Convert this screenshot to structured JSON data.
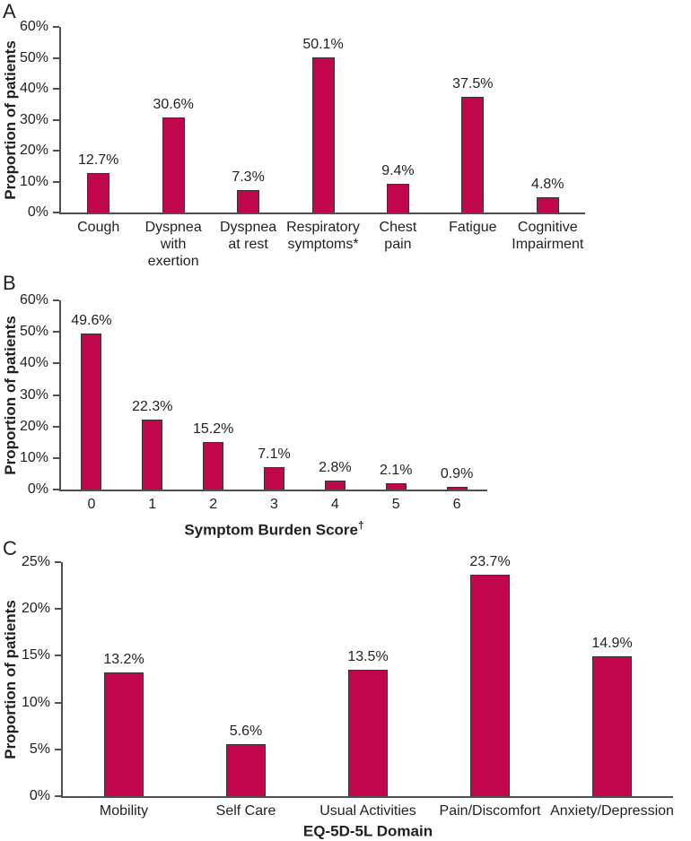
{
  "colors": {
    "bar_fill": "#C1074B",
    "bar_border": "#3a3336",
    "axis": "#4f4f4f",
    "text": "#231f20"
  },
  "chart_data": [
    {
      "panel": "A",
      "type": "bar",
      "title": "",
      "ylabel": "Proportion of patients",
      "xlabel": "",
      "xlabel_sup": "",
      "ylim": [
        0,
        60
      ],
      "ytick_step": 10,
      "ytick_suffix": "%",
      "grid": false,
      "legend": "none",
      "categories": [
        "Cough",
        "Dyspnea\nwith\nexertion",
        "Dyspnea\nat rest",
        "Respiratory\nsymptoms*",
        "Chest\npain",
        "Fatigue",
        "Cognitive\nImpairment"
      ],
      "values": [
        12.7,
        30.6,
        7.3,
        50.1,
        9.4,
        37.5,
        4.8
      ],
      "value_labels": [
        "12.7%",
        "30.6%",
        "7.3%",
        "50.1%",
        "9.4%",
        "37.5%",
        "4.8%"
      ]
    },
    {
      "panel": "B",
      "type": "bar",
      "title": "",
      "ylabel": "Proportion of patients",
      "xlabel": "Symptom Burden Score",
      "xlabel_sup": "†",
      "ylim": [
        0,
        60
      ],
      "ytick_step": 10,
      "ytick_suffix": "%",
      "grid": false,
      "legend": "none",
      "categories": [
        "0",
        "1",
        "2",
        "3",
        "4",
        "5",
        "6"
      ],
      "values": [
        49.6,
        22.3,
        15.2,
        7.1,
        2.8,
        2.1,
        0.9
      ],
      "value_labels": [
        "49.6%",
        "22.3%",
        "15.2%",
        "7.1%",
        "2.8%",
        "2.1%",
        "0.9%"
      ]
    },
    {
      "panel": "C",
      "type": "bar",
      "title": "",
      "ylabel": "Proportion of patients",
      "xlabel": "EQ-5D-5L Domain",
      "xlabel_sup": "",
      "ylim": [
        0,
        25
      ],
      "ytick_step": 5,
      "ytick_suffix": "%",
      "grid": false,
      "legend": "none",
      "categories": [
        "Mobility",
        "Self Care",
        "Usual Activities",
        "Pain/Discomfort",
        "Anxiety/Depression"
      ],
      "values": [
        13.2,
        5.6,
        13.5,
        23.7,
        14.9
      ],
      "value_labels": [
        "13.2%",
        "5.6%",
        "13.5%",
        "23.7%",
        "14.9%"
      ]
    }
  ]
}
